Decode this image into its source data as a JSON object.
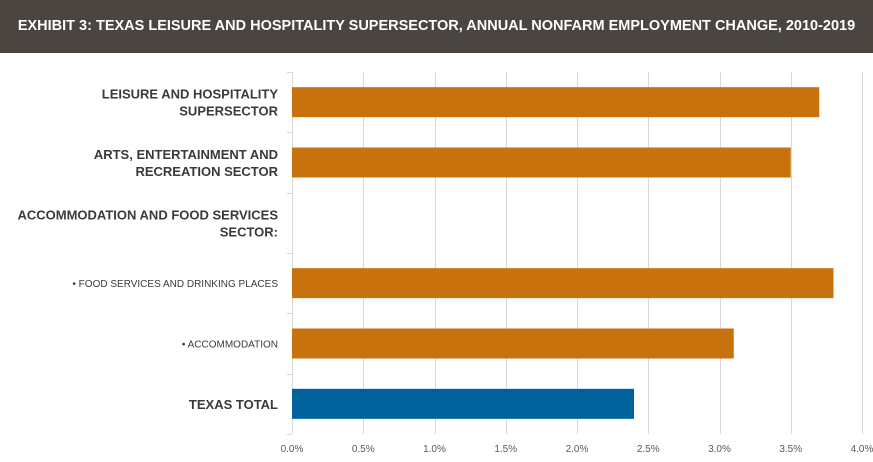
{
  "title": "EXHIBIT 3: TEXAS LEISURE AND HOSPITALITY SUPERSECTOR, ANNUAL NONFARM EMPLOYMENT CHANGE, 2010-2019",
  "colors": {
    "header_bg": "#4a4540",
    "bar_primary": "#c8720d",
    "bar_total": "#00629b",
    "gridline": "#d9d9d9"
  },
  "chart_data": {
    "type": "bar",
    "orientation": "horizontal",
    "categories": [
      {
        "lines": [
          "LEISURE AND HOSPITALITY",
          "SUPERSECTOR"
        ],
        "style": "bold",
        "value": 3.7,
        "color": "#c8720d"
      },
      {
        "lines": [
          "ARTS, ENTERTAINMENT AND",
          "RECREATION SECTOR"
        ],
        "style": "bold",
        "value": 3.5,
        "color": "#c8720d"
      },
      {
        "lines": [
          "ACCOMMODATION AND FOOD SERVICES",
          "SECTOR:"
        ],
        "style": "bold",
        "value": null,
        "color": "#c8720d"
      },
      {
        "lines": [
          "• FOOD SERVICES AND DRINKING PLACES"
        ],
        "style": "small",
        "value": 3.8,
        "color": "#c8720d"
      },
      {
        "lines": [
          "• ACCOMMODATION"
        ],
        "style": "small",
        "value": 3.1,
        "color": "#c8720d"
      },
      {
        "lines": [
          "TEXAS TOTAL"
        ],
        "style": "bold",
        "value": 2.4,
        "color": "#00629b"
      }
    ],
    "unit": "%",
    "xlim": [
      0,
      4.0
    ],
    "xticks": [
      0,
      0.5,
      1.0,
      1.5,
      2.0,
      2.5,
      3.0,
      3.5,
      4.0
    ],
    "xtick_labels": [
      "0.0%",
      "0.5%",
      "1.0%",
      "1.5%",
      "2.0%",
      "2.5%",
      "3.0%",
      "3.5%",
      "4.0%"
    ],
    "grid": true,
    "legend": "none"
  }
}
